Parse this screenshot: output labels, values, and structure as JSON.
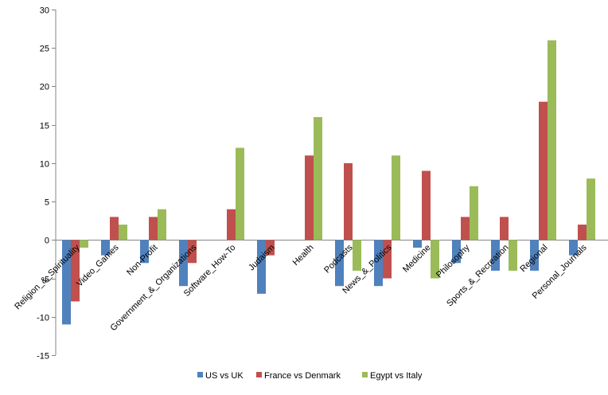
{
  "chart_data": {
    "type": "bar",
    "title": "",
    "xlabel": "",
    "ylabel": "",
    "ylim": [
      -15,
      30
    ],
    "yticks": [
      30,
      25,
      20,
      15,
      10,
      5,
      0,
      -5,
      -10,
      -15
    ],
    "grid": false,
    "legend_position": "bottom",
    "categories": [
      "Religion_&_Spirituality",
      "Video_Games",
      "Non-Profit",
      "Government_&_Organizations",
      "Software_How-To",
      "Judaism",
      "Health",
      "Podcasts",
      "News_&_Politics",
      "Medicine",
      "Philosophy",
      "Sports_&_Recreation",
      "Regional",
      "Personal_Journals"
    ],
    "series": [
      {
        "name": "US vs UK",
        "color": "#4F81BD",
        "values": [
          -11,
          -2,
          -3,
          -6,
          0,
          -7,
          0,
          -6,
          -6,
          -1,
          -3,
          -4,
          -4,
          -2
        ]
      },
      {
        "name": "France vs Denmark",
        "color": "#C0504D",
        "values": [
          -8,
          3,
          3,
          -3,
          4,
          -2,
          11,
          10,
          -5,
          9,
          3,
          3,
          18,
          2
        ]
      },
      {
        "name": "Egypt vs Italy",
        "color": "#9BBB59",
        "values": [
          -1,
          2,
          4,
          0,
          12,
          0,
          16,
          -4,
          11,
          -5,
          7,
          -4,
          26,
          8
        ]
      }
    ]
  }
}
